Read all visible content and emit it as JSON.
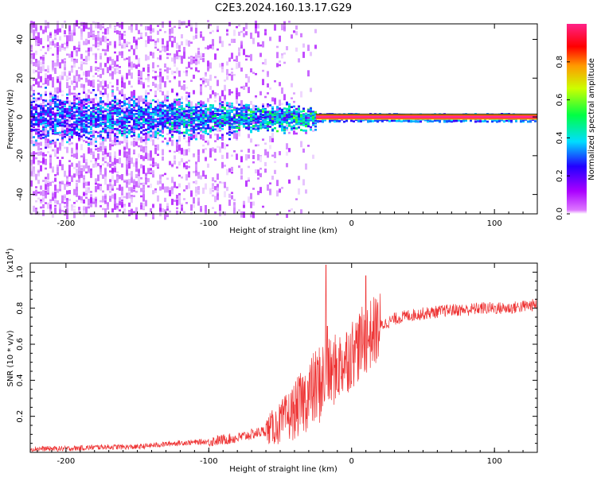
{
  "title": "C2E3.2024.160.13.17.G29",
  "chart_data": [
    {
      "type": "heatmap",
      "xlabel": "Height of straight line (km)",
      "ylabel": "Frequency (Hz)",
      "xlim": [
        -225,
        130
      ],
      "ylim": [
        -50,
        48
      ],
      "xticks": [
        -200,
        -100,
        0,
        100
      ],
      "yticks": [
        -40,
        -20,
        0,
        20,
        40
      ],
      "colorbar": {
        "label": "Normalized spectral amplitude",
        "range": [
          0,
          1
        ],
        "ticks": [
          0.0,
          0.2,
          0.4,
          0.6,
          0.8
        ],
        "colormap": "rainbow (magenta-blue-cyan-green-yellow-red-pink)"
      },
      "features": {
        "carrier_frequency_hz": 0,
        "broadband_scatter_x_range": [
          -225,
          -25
        ],
        "coherent_line_x_range": [
          -25,
          130
        ]
      }
    },
    {
      "type": "line",
      "xlabel": "Height of straight line (km)",
      "ylabel": "SNR (10 * v/v)",
      "y_multiplier_label": "(x10",
      "y_multiplier_exp": "4",
      "xlim": [
        -225,
        130
      ],
      "ylim": [
        0,
        1.05
      ],
      "xticks": [
        -200,
        -100,
        0,
        100
      ],
      "yticks": [
        0.2,
        0.4,
        0.6,
        0.8,
        1.0
      ],
      "color": "#ee3333",
      "trend": {
        "x": [
          -225,
          -200,
          -175,
          -150,
          -125,
          -100,
          -90,
          -80,
          -70,
          -60,
          -50,
          -40,
          -30,
          -20,
          -10,
          0,
          10,
          20,
          30,
          40,
          50,
          60,
          70,
          80,
          90,
          100,
          110,
          120,
          130
        ],
        "y": [
          0.02,
          0.02,
          0.03,
          0.03,
          0.05,
          0.06,
          0.07,
          0.08,
          0.1,
          0.12,
          0.16,
          0.23,
          0.32,
          0.4,
          0.47,
          0.55,
          0.63,
          0.7,
          0.74,
          0.76,
          0.77,
          0.78,
          0.79,
          0.79,
          0.8,
          0.8,
          0.8,
          0.81,
          0.82
        ]
      },
      "spikes": [
        {
          "x": -18,
          "y": 1.04
        },
        {
          "x": 10,
          "y": 0.98
        },
        {
          "x": -17,
          "y": 0.7
        },
        {
          "x": 2,
          "y": 0.62
        }
      ]
    }
  ]
}
